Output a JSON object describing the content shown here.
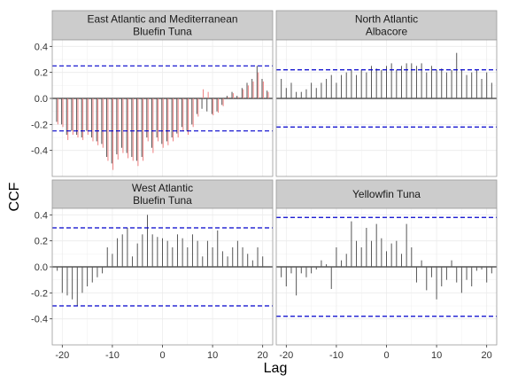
{
  "chart_data": {
    "type": "bar",
    "ylabel": "CCF",
    "xlabel": "Lag",
    "xlim": [
      -22,
      22
    ],
    "ylim": [
      -0.6,
      0.45
    ],
    "x_ticks": [
      -20,
      -10,
      0,
      10,
      20
    ],
    "y_ticks": [
      -0.4,
      -0.2,
      0.0,
      0.2,
      0.4
    ],
    "y_tick_labels": [
      "-0.4",
      "-0.2",
      "0.0",
      "0.2",
      "0.4"
    ],
    "grid": true,
    "colors": {
      "bar": "#555555",
      "bar_secondary": "#f08080",
      "bound": "#0000cc",
      "zero_line": "#000000",
      "strip_fill": "#cccccc",
      "panel_border": "#999999",
      "grid": "#ececec"
    },
    "panels": [
      {
        "title_lines": [
          "East Atlantic and Mediterranean",
          "Bluefin Tuna"
        ],
        "bound": 0.25,
        "lags": [
          -21,
          -20,
          -19,
          -18,
          -17,
          -16,
          -15,
          -14,
          -13,
          -12,
          -11,
          -10,
          -9,
          -8,
          -7,
          -6,
          -5,
          -4,
          -3,
          -2,
          -1,
          0,
          1,
          2,
          3,
          4,
          5,
          6,
          7,
          8,
          9,
          10,
          11,
          12,
          13,
          14,
          15,
          16,
          17,
          18,
          19,
          20,
          21
        ],
        "series": [
          {
            "name": "",
            "values": [
              -0.18,
              -0.2,
              -0.28,
              -0.25,
              -0.28,
              -0.3,
              -0.25,
              -0.3,
              -0.33,
              -0.35,
              -0.45,
              -0.5,
              -0.43,
              -0.38,
              -0.42,
              -0.45,
              -0.48,
              -0.45,
              -0.3,
              -0.38,
              -0.3,
              -0.35,
              -0.33,
              -0.3,
              -0.27,
              -0.22,
              -0.25,
              -0.2,
              -0.12,
              -0.08,
              -0.1,
              -0.12,
              -0.1,
              -0.05,
              0.02,
              0.05,
              0.02,
              0.08,
              0.12,
              0.15,
              0.25,
              0.15,
              0.06
            ]
          },
          {
            "name": "",
            "values": [
              -0.2,
              -0.22,
              -0.32,
              -0.28,
              -0.3,
              -0.32,
              -0.28,
              -0.33,
              -0.36,
              -0.38,
              -0.48,
              -0.55,
              -0.47,
              -0.42,
              -0.46,
              -0.48,
              -0.52,
              -0.48,
              -0.33,
              -0.42,
              -0.33,
              -0.38,
              -0.36,
              -0.33,
              -0.3,
              -0.25,
              -0.28,
              -0.22,
              -0.14,
              0.07,
              0.05,
              -0.13,
              -0.11,
              -0.06,
              0.01,
              0.04,
              0.01,
              0.07,
              0.1,
              0.13,
              0.2,
              0.13,
              0.05
            ]
          }
        ]
      },
      {
        "title_lines": [
          "North Atlantic",
          "Albacore"
        ],
        "bound": 0.22,
        "lags": [
          -21,
          -20,
          -19,
          -18,
          -17,
          -16,
          -15,
          -14,
          -13,
          -12,
          -11,
          -10,
          -9,
          -8,
          -7,
          -6,
          -5,
          -4,
          -3,
          -2,
          -1,
          0,
          1,
          2,
          3,
          4,
          5,
          6,
          7,
          8,
          9,
          10,
          11,
          12,
          13,
          14,
          15,
          16,
          17,
          18,
          19,
          20,
          21
        ],
        "series": [
          {
            "name": "",
            "values": [
              0.15,
              0.08,
              0.12,
              0.05,
              0.05,
              0.07,
              0.12,
              0.08,
              0.12,
              0.15,
              0.18,
              0.12,
              0.18,
              0.2,
              0.22,
              0.18,
              0.22,
              0.2,
              0.25,
              0.23,
              0.22,
              0.25,
              0.27,
              0.22,
              0.25,
              0.27,
              0.27,
              0.25,
              0.27,
              0.2,
              0.25,
              0.22,
              0.23,
              0.2,
              0.22,
              0.35,
              0.22,
              0.18,
              0.2,
              0.22,
              0.15,
              0.2,
              0.12
            ]
          }
        ]
      },
      {
        "title_lines": [
          "West Atlantic",
          "Bluefin Tuna"
        ],
        "bound": 0.3,
        "lags": [
          -21,
          -20,
          -19,
          -18,
          -17,
          -16,
          -15,
          -14,
          -13,
          -12,
          -11,
          -10,
          -9,
          -8,
          -7,
          -6,
          -5,
          -4,
          -3,
          -2,
          -1,
          0,
          1,
          2,
          3,
          4,
          5,
          6,
          7,
          8,
          9,
          10,
          11,
          12,
          13,
          14,
          15,
          16,
          17,
          18,
          19,
          20,
          21
        ],
        "series": [
          {
            "name": "",
            "values": [
              -0.03,
              -0.2,
              -0.22,
              -0.25,
              -0.3,
              -0.2,
              -0.15,
              -0.12,
              -0.08,
              -0.05,
              0.15,
              0.1,
              0.22,
              0.25,
              0.3,
              0.08,
              0.18,
              0.25,
              0.4,
              0.25,
              0.23,
              0.22,
              0.2,
              0.15,
              0.25,
              0.22,
              0.15,
              0.25,
              0.2,
              0.08,
              0.2,
              0.15,
              0.28,
              0.12,
              0.08,
              0.15,
              0.2,
              0.15,
              0.1,
              0.05,
              0.15,
              0.08,
              0.0
            ]
          }
        ]
      },
      {
        "title_lines": [
          "Yellowfin Tuna"
        ],
        "bound": 0.38,
        "lags": [
          -21,
          -20,
          -19,
          -18,
          -17,
          -16,
          -15,
          -14,
          -13,
          -12,
          -11,
          -10,
          -9,
          -8,
          -7,
          -6,
          -5,
          -4,
          -3,
          -2,
          -1,
          0,
          1,
          2,
          3,
          4,
          5,
          6,
          7,
          8,
          9,
          10,
          11,
          12,
          13,
          14,
          15,
          16,
          17,
          18,
          19,
          20,
          21
        ],
        "series": [
          {
            "name": "",
            "values": [
              -0.08,
              -0.15,
              -0.05,
              -0.22,
              -0.05,
              -0.08,
              -0.05,
              -0.02,
              0.05,
              0.02,
              -0.17,
              0.15,
              0.05,
              0.1,
              0.35,
              0.2,
              0.15,
              0.3,
              0.2,
              0.33,
              0.22,
              0.12,
              0.18,
              0.2,
              0.1,
              0.33,
              0.15,
              -0.12,
              0.05,
              -0.18,
              -0.08,
              -0.25,
              -0.15,
              -0.1,
              0.05,
              -0.12,
              -0.2,
              -0.1,
              -0.15,
              -0.03,
              -0.02,
              -0.12,
              -0.05
            ]
          }
        ]
      }
    ]
  }
}
